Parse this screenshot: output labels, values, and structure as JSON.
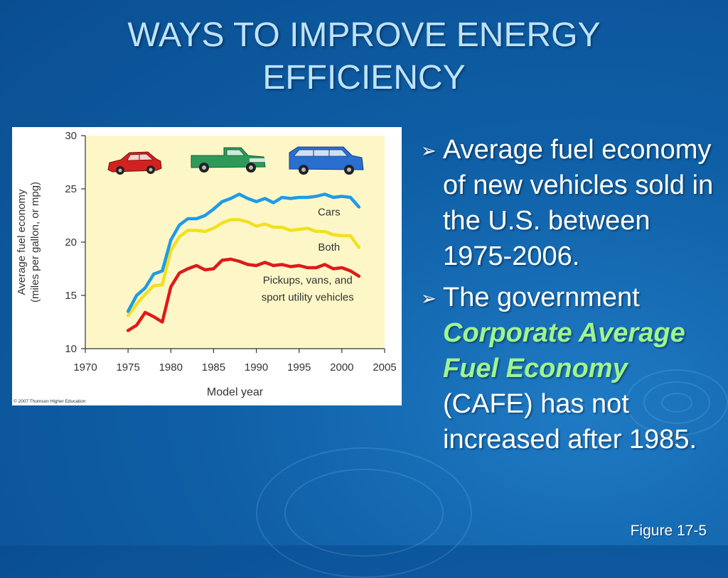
{
  "slide": {
    "title_line1": "WAYS TO IMPROVE ENERGY",
    "title_line2": "EFFICIENCY",
    "figure_ref": "Figure 17-5",
    "bullets": [
      {
        "text": "Average fuel economy of new vehicles sold in the U.S. between 1975-2006."
      },
      {
        "pre": "The government ",
        "emph": "Corporate Average Fuel Economy",
        "post": " (CAFE) has not increased after 1985."
      }
    ]
  },
  "colors": {
    "cars": "#1e9be6",
    "both": "#f2e020",
    "trucks": "#de1a1a",
    "plot_bg": "#fdf7c8",
    "title_text": "#bfe3ff",
    "emphasis": "#9ef58e"
  },
  "icons": [
    "red-sedan-icon",
    "green-pickup-icon",
    "blue-suv-icon",
    "bullet-arrow-icon"
  ],
  "chart_data": {
    "type": "line",
    "xlabel": "Model year",
    "ylabel_line1": "Average fuel economy",
    "ylabel_line2": "(miles per gallon, or mpg)",
    "copyright": "© 2007 Thomson Higher Education",
    "xlim": [
      1970,
      2005
    ],
    "ylim": [
      10,
      30
    ],
    "xticks": [
      1970,
      1975,
      1980,
      1985,
      1990,
      1995,
      2000,
      2005
    ],
    "yticks": [
      10,
      15,
      20,
      25,
      30
    ],
    "grid": false,
    "x": [
      1975,
      1976,
      1977,
      1978,
      1979,
      1980,
      1981,
      1982,
      1983,
      1984,
      1985,
      1986,
      1987,
      1988,
      1989,
      1990,
      1991,
      1992,
      1993,
      1994,
      1995,
      1996,
      1997,
      1998,
      1999,
      2000,
      2001,
      2002
    ],
    "series": [
      {
        "name": "Cars",
        "label": "Cars",
        "key": "cars",
        "values": [
          13.5,
          15.0,
          15.7,
          17.0,
          17.3,
          20.2,
          21.6,
          22.2,
          22.2,
          22.5,
          23.1,
          23.8,
          24.1,
          24.5,
          24.1,
          23.8,
          24.1,
          23.7,
          24.2,
          24.1,
          24.2,
          24.2,
          24.3,
          24.5,
          24.2,
          24.3,
          24.2,
          23.3
        ]
      },
      {
        "name": "Both",
        "label": "Both",
        "key": "both",
        "values": [
          13.1,
          14.2,
          15.1,
          15.9,
          16.0,
          19.2,
          20.5,
          21.1,
          21.1,
          21.0,
          21.3,
          21.8,
          22.1,
          22.1,
          21.9,
          21.5,
          21.7,
          21.4,
          21.4,
          21.1,
          21.2,
          21.3,
          21.0,
          21.0,
          20.7,
          20.6,
          20.6,
          19.5
        ]
      },
      {
        "name": "Pickups, vans, and sport utility vehicles",
        "label_line1": "Pickups, vans, and",
        "label_line2": "sport utility vehicles",
        "key": "trucks",
        "values": [
          11.7,
          12.2,
          13.4,
          13.0,
          12.5,
          15.8,
          17.1,
          17.5,
          17.8,
          17.4,
          17.5,
          18.3,
          18.4,
          18.2,
          17.9,
          17.8,
          18.1,
          17.8,
          17.9,
          17.7,
          17.8,
          17.6,
          17.6,
          17.9,
          17.5,
          17.6,
          17.3,
          16.8
        ]
      }
    ]
  }
}
